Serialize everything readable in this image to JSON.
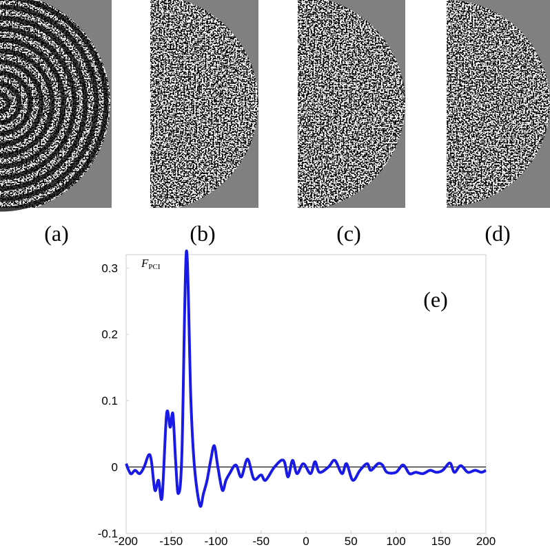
{
  "panels": [
    {
      "label": "(a)"
    },
    {
      "label": "(b)"
    },
    {
      "label": "(c)"
    },
    {
      "label": "(d)"
    }
  ],
  "chart_data": {
    "type": "line",
    "annotation": "(e)",
    "y_label": {
      "symbol": "F",
      "subscript": "PCI"
    },
    "x": [
      -200,
      -195,
      -190,
      -185,
      -180,
      -175,
      -172,
      -168,
      -164,
      -160,
      -155,
      -151,
      -148,
      -145,
      -142,
      -138,
      -133,
      -128,
      -124,
      -118,
      -114,
      -110,
      -106,
      -102,
      -98,
      -93,
      -89,
      -85,
      -78,
      -72,
      -65,
      -58,
      -50,
      -45,
      -35,
      -25,
      -20,
      -15,
      -10,
      -3,
      5,
      10,
      15,
      25,
      32,
      40,
      45,
      52,
      60,
      68,
      72,
      80,
      85,
      90,
      100,
      108,
      115,
      122,
      130,
      138,
      145,
      152,
      160,
      165,
      172,
      180,
      188,
      195,
      200
    ],
    "series": [
      {
        "name": "FPCI",
        "color": "#1a1ae6",
        "values": [
          0.005,
          -0.01,
          -0.005,
          -0.01,
          0.0,
          0.018,
          0.01,
          -0.035,
          -0.02,
          -0.045,
          0.08,
          0.06,
          0.08,
          0.01,
          -0.04,
          0.02,
          0.325,
          0.1,
          0.0,
          -0.058,
          -0.04,
          -0.02,
          0.01,
          0.032,
          0.0,
          -0.035,
          -0.02,
          -0.01,
          0.003,
          -0.015,
          0.012,
          -0.018,
          -0.012,
          -0.02,
          0.0,
          0.01,
          -0.015,
          0.01,
          -0.01,
          0.005,
          -0.01,
          0.008,
          -0.008,
          0.0,
          0.01,
          -0.01,
          0.005,
          -0.02,
          -0.005,
          0.005,
          -0.005,
          0.005,
          0.003,
          -0.008,
          -0.008,
          0.003,
          -0.01,
          -0.008,
          -0.01,
          -0.005,
          -0.008,
          -0.005,
          0.006,
          -0.008,
          0.002,
          -0.008,
          -0.005,
          -0.008,
          -0.005
        ]
      }
    ],
    "xlim": [
      -200,
      200
    ],
    "ylim": [
      -0.1,
      0.32
    ],
    "xticks": [
      -200,
      -150,
      -100,
      -50,
      0,
      50,
      100,
      150,
      200
    ],
    "yticks": [
      -0.1,
      0,
      0.1,
      0.2,
      0.3
    ],
    "reference_line": 0
  }
}
